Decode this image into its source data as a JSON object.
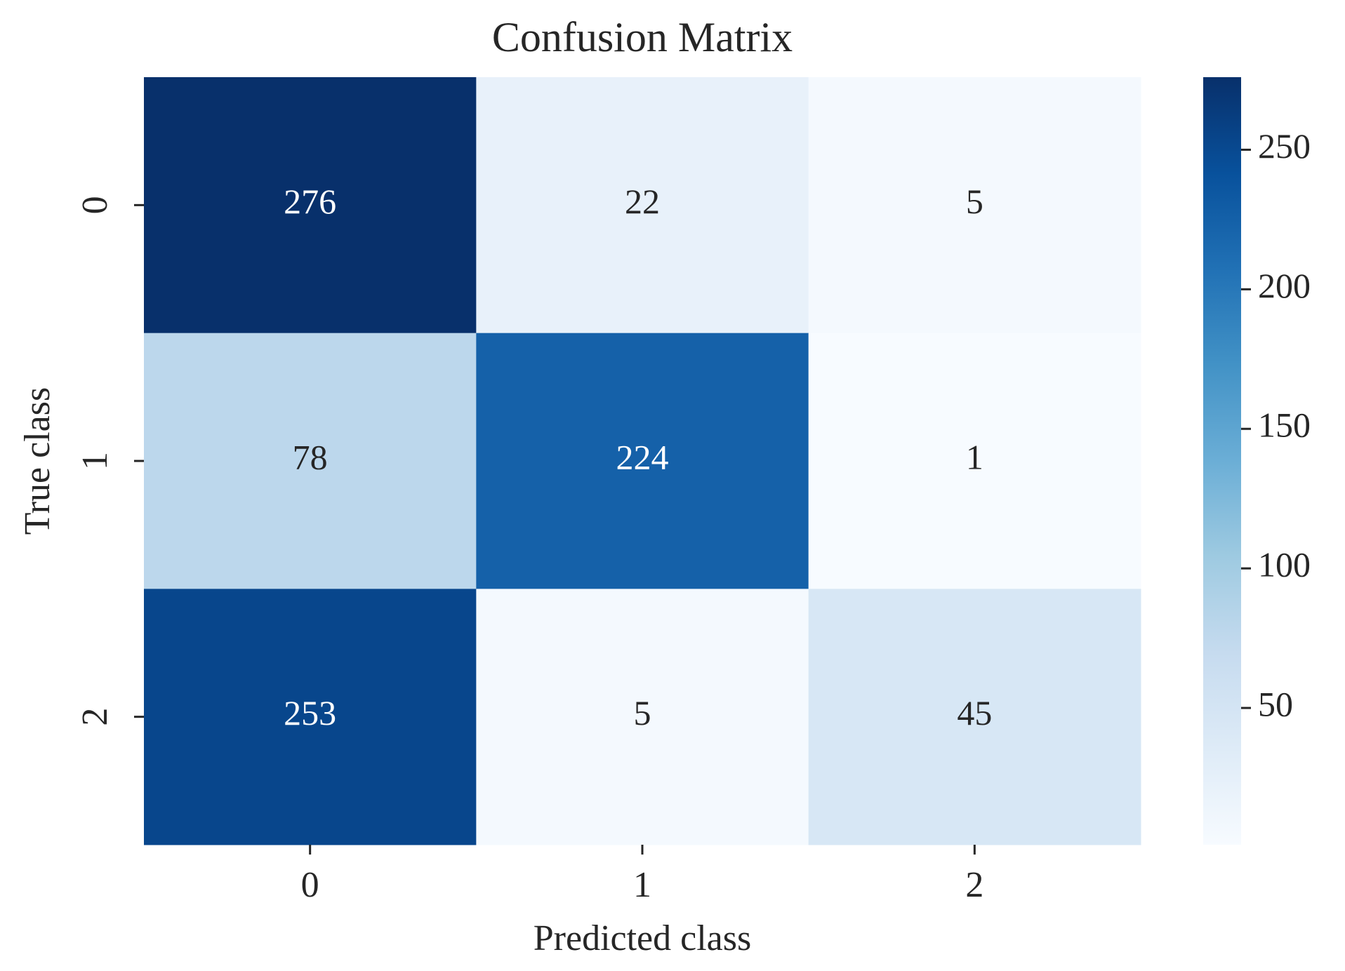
{
  "chart_data": {
    "type": "heatmap",
    "title": "Confusion Matrix",
    "xlabel": "Predicted class",
    "ylabel": "True class",
    "x_categories": [
      "0",
      "1",
      "2"
    ],
    "y_categories": [
      "0",
      "1",
      "2"
    ],
    "values": [
      [
        276,
        22,
        5
      ],
      [
        78,
        224,
        1
      ],
      [
        253,
        5,
        45
      ]
    ],
    "colormap": "Blues",
    "clim": [
      1,
      276
    ],
    "cticks": [
      50,
      100,
      150,
      200,
      250
    ]
  }
}
